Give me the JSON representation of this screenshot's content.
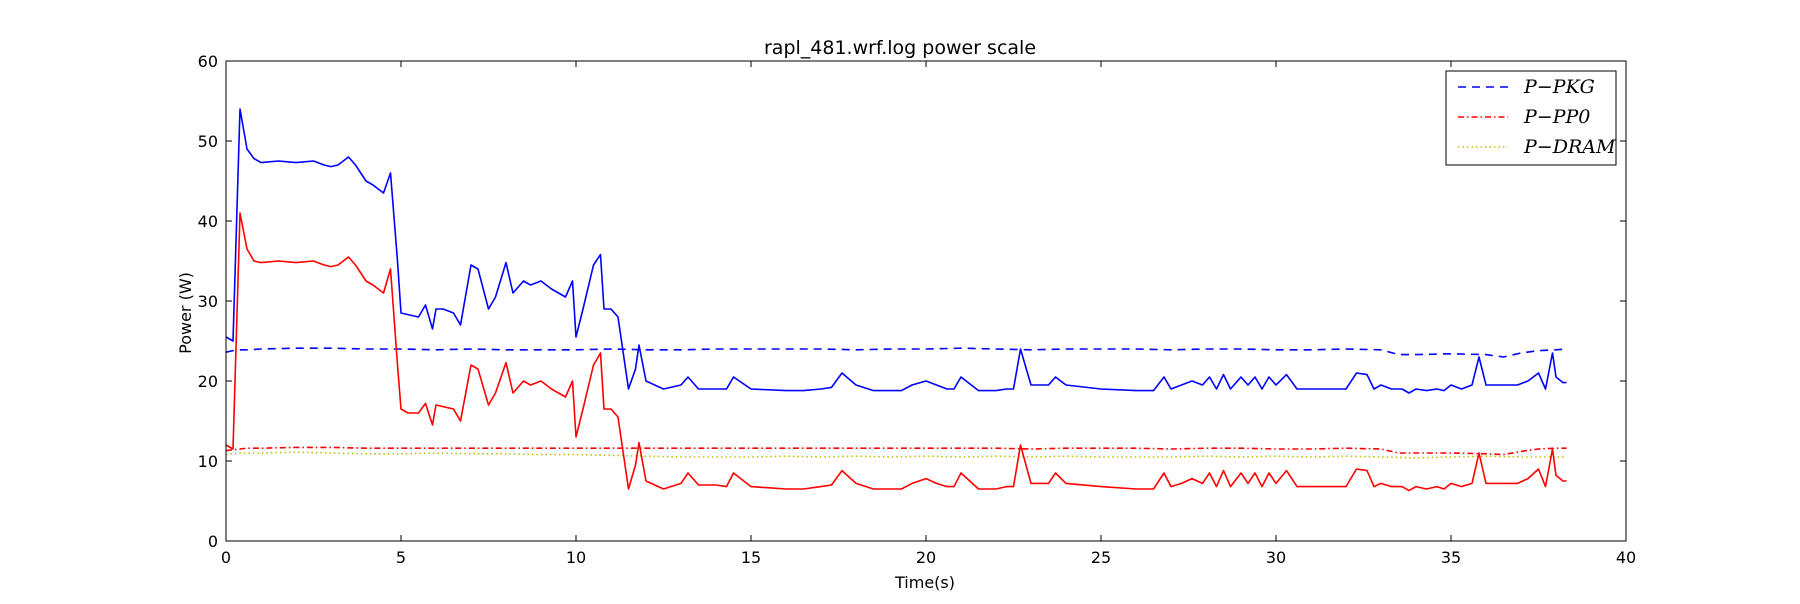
{
  "chart_data": {
    "type": "line",
    "title": "rapl_481.wrf.log power scale",
    "xlabel": "Time(s)",
    "ylabel": "Power (W)",
    "xlim": [
      0,
      40
    ],
    "ylim": [
      0,
      60
    ],
    "xticks": [
      0,
      5,
      10,
      15,
      20,
      25,
      30,
      35,
      40
    ],
    "yticks": [
      0,
      10,
      20,
      30,
      40,
      50,
      60
    ],
    "grid": false,
    "legend_position": "top-right",
    "series": [
      {
        "name": "P−PKG",
        "legend_glyphs": [
          "P",
          "−",
          "P",
          "K",
          "G"
        ],
        "color": "#0000ff",
        "dasharray": "8,6",
        "x": [
          0,
          0.2,
          0.4,
          0.6,
          1.0,
          2.0,
          3.0,
          4.0,
          5.0,
          6.0,
          7.0,
          8.0,
          9.0,
          10.0,
          11.0,
          12.0,
          13.0,
          14.0,
          15.0,
          16.0,
          17.0,
          18.0,
          19.0,
          20.0,
          21.0,
          22.0,
          23.0,
          24.0,
          25.0,
          26.0,
          27.0,
          28.0,
          29.0,
          30.0,
          31.0,
          32.0,
          33.0,
          33.5,
          34.0,
          35.0,
          36.0,
          36.5,
          37.0,
          37.5,
          38.0,
          38.3
        ],
        "y": [
          23.6,
          23.8,
          23.9,
          23.9,
          24.0,
          24.1,
          24.1,
          24.0,
          24.0,
          23.9,
          24.0,
          23.9,
          23.9,
          23.9,
          24.0,
          23.9,
          23.9,
          24.0,
          24.0,
          24.0,
          24.0,
          23.9,
          24.0,
          24.0,
          24.1,
          24.0,
          23.9,
          24.0,
          24.0,
          24.0,
          23.9,
          24.0,
          24.0,
          23.9,
          23.9,
          24.0,
          23.9,
          23.3,
          23.3,
          23.4,
          23.3,
          23.0,
          23.5,
          23.8,
          23.9,
          24.0
        ]
      },
      {
        "name": "P−PP0",
        "legend_glyphs": [
          "P",
          "−",
          "P",
          "P",
          "0"
        ],
        "color": "#ff0000",
        "dasharray": "6,3,1.5,3",
        "x": [
          0,
          0.2,
          0.4,
          0.6,
          1.0,
          2.0,
          3.0,
          4.0,
          5.0,
          6.0,
          7.0,
          8.0,
          9.0,
          10.0,
          11.0,
          12.0,
          13.0,
          14.0,
          15.0,
          16.0,
          17.0,
          18.0,
          19.0,
          20.0,
          21.0,
          22.0,
          23.0,
          24.0,
          25.0,
          26.0,
          27.0,
          28.0,
          29.0,
          30.0,
          31.0,
          32.0,
          33.0,
          33.5,
          34.0,
          35.0,
          36.0,
          36.5,
          37.0,
          37.5,
          38.0,
          38.3
        ],
        "y": [
          11.3,
          11.4,
          11.5,
          11.6,
          11.6,
          11.7,
          11.7,
          11.6,
          11.6,
          11.6,
          11.6,
          11.6,
          11.6,
          11.6,
          11.6,
          11.6,
          11.6,
          11.6,
          11.6,
          11.6,
          11.6,
          11.6,
          11.6,
          11.6,
          11.6,
          11.6,
          11.5,
          11.6,
          11.6,
          11.6,
          11.5,
          11.6,
          11.6,
          11.5,
          11.5,
          11.6,
          11.5,
          11.0,
          11.0,
          11.0,
          10.9,
          10.8,
          11.2,
          11.5,
          11.6,
          11.6
        ]
      },
      {
        "name": "P−DRAM",
        "legend_glyphs": [
          "P",
          "−",
          "D",
          "R",
          "A",
          "M"
        ],
        "color": "#bfbf00",
        "dasharray": "1.5,3",
        "x": [
          0,
          0.2,
          0.4,
          0.6,
          1.0,
          2.0,
          3.0,
          4.0,
          5.0,
          6.0,
          7.0,
          8.0,
          9.0,
          10.0,
          11.0,
          12.0,
          13.0,
          14.0,
          15.0,
          16.0,
          17.0,
          18.0,
          19.0,
          20.0,
          21.0,
          22.0,
          23.0,
          24.0,
          25.0,
          26.0,
          27.0,
          28.0,
          29.0,
          30.0,
          31.0,
          32.0,
          33.0,
          34.0,
          35.0,
          36.0,
          37.0,
          38.0,
          38.3
        ],
        "y": [
          10.8,
          10.9,
          11.0,
          11.0,
          11.0,
          11.1,
          11.0,
          10.9,
          10.9,
          11.0,
          10.9,
          10.9,
          10.8,
          10.8,
          10.7,
          10.6,
          10.5,
          10.5,
          10.5,
          10.6,
          10.5,
          10.6,
          10.5,
          10.6,
          10.5,
          10.6,
          10.5,
          10.6,
          10.5,
          10.5,
          10.5,
          10.6,
          10.5,
          10.6,
          10.5,
          10.6,
          10.5,
          10.4,
          10.5,
          10.6,
          10.5,
          10.5,
          10.5
        ]
      },
      {
        "name": "",
        "legend_glyphs": [],
        "color": "#0000ff",
        "dasharray": "",
        "x": [
          0,
          0.2,
          0.4,
          0.6,
          0.8,
          1.0,
          1.5,
          2.0,
          2.5,
          2.8,
          3.0,
          3.2,
          3.5,
          3.7,
          4.0,
          4.2,
          4.5,
          4.7,
          4.9,
          5.0,
          5.2,
          5.5,
          5.7,
          5.9,
          6.0,
          6.2,
          6.5,
          6.7,
          7.0,
          7.2,
          7.5,
          7.7,
          8.0,
          8.2,
          8.5,
          8.7,
          9.0,
          9.3,
          9.7,
          9.9,
          10.0,
          10.2,
          10.5,
          10.7,
          10.8,
          11.0,
          11.2,
          11.5,
          11.7,
          11.8,
          12.0,
          12.5,
          13.0,
          13.2,
          13.5,
          14.0,
          14.3,
          14.5,
          15.0,
          16.0,
          16.5,
          17.0,
          17.3,
          17.6,
          18.0,
          18.5,
          19.0,
          19.3,
          19.6,
          20.0,
          20.3,
          20.6,
          20.8,
          21.0,
          21.5,
          22.0,
          22.3,
          22.5,
          22.7,
          23.0,
          23.5,
          23.7,
          24.0,
          25.0,
          26.0,
          26.5,
          26.8,
          27.0,
          27.3,
          27.6,
          27.9,
          28.1,
          28.3,
          28.5,
          28.7,
          29.0,
          29.2,
          29.4,
          29.6,
          29.8,
          30.0,
          30.3,
          30.6,
          31.0,
          31.5,
          32.0,
          32.3,
          32.6,
          32.8,
          33.0,
          33.3,
          33.6,
          33.8,
          34.0,
          34.3,
          34.6,
          34.8,
          35.0,
          35.3,
          35.6,
          35.8,
          36.0,
          36.3,
          36.6,
          36.9,
          37.2,
          37.5,
          37.7,
          37.9,
          38.0,
          38.2,
          38.3
        ],
        "y": [
          25.5,
          25.0,
          54.0,
          49.0,
          47.8,
          47.3,
          47.5,
          47.3,
          47.5,
          47.0,
          46.8,
          47.0,
          48.0,
          47.0,
          45.0,
          44.5,
          43.5,
          46.0,
          35.0,
          28.5,
          28.3,
          28.0,
          29.5,
          26.5,
          29.0,
          29.0,
          28.5,
          27.0,
          34.5,
          34.0,
          29.0,
          30.5,
          34.8,
          31.0,
          32.5,
          32.0,
          32.5,
          31.5,
          30.5,
          32.5,
          25.5,
          29.0,
          34.5,
          35.8,
          29.0,
          29.0,
          28.0,
          19.0,
          21.5,
          24.5,
          20.0,
          19.0,
          19.5,
          20.5,
          19.0,
          19.0,
          19.0,
          20.5,
          19.0,
          18.8,
          18.8,
          19.0,
          19.2,
          21.0,
          19.5,
          18.8,
          18.8,
          18.8,
          19.5,
          20.0,
          19.5,
          19.0,
          19.0,
          20.5,
          18.8,
          18.8,
          19.0,
          19.0,
          24.0,
          19.5,
          19.5,
          20.5,
          19.5,
          19.0,
          18.8,
          18.8,
          20.5,
          19.0,
          19.5,
          20.0,
          19.5,
          20.5,
          19.0,
          20.8,
          19.0,
          20.5,
          19.5,
          20.5,
          19.0,
          20.5,
          19.5,
          20.8,
          19.0,
          19.0,
          19.0,
          19.0,
          21.0,
          20.8,
          19.0,
          19.5,
          19.0,
          19.0,
          18.5,
          19.0,
          18.8,
          19.0,
          18.8,
          19.5,
          19.0,
          19.5,
          23.0,
          19.5,
          19.5,
          19.5,
          19.5,
          20.0,
          21.0,
          19.0,
          23.5,
          20.5,
          19.8,
          19.8
        ]
      },
      {
        "name": "",
        "legend_glyphs": [],
        "color": "#ff0000",
        "dasharray": "",
        "x": [
          0,
          0.2,
          0.4,
          0.6,
          0.8,
          1.0,
          1.5,
          2.0,
          2.5,
          2.8,
          3.0,
          3.2,
          3.5,
          3.7,
          4.0,
          4.2,
          4.5,
          4.7,
          4.9,
          5.0,
          5.2,
          5.5,
          5.7,
          5.9,
          6.0,
          6.2,
          6.5,
          6.7,
          7.0,
          7.2,
          7.5,
          7.7,
          8.0,
          8.2,
          8.5,
          8.7,
          9.0,
          9.3,
          9.7,
          9.9,
          10.0,
          10.2,
          10.5,
          10.7,
          10.8,
          11.0,
          11.2,
          11.5,
          11.7,
          11.8,
          12.0,
          12.5,
          13.0,
          13.2,
          13.5,
          14.0,
          14.3,
          14.5,
          15.0,
          16.0,
          16.5,
          17.0,
          17.3,
          17.6,
          18.0,
          18.5,
          19.0,
          19.3,
          19.6,
          20.0,
          20.3,
          20.6,
          20.8,
          21.0,
          21.5,
          22.0,
          22.3,
          22.5,
          22.7,
          23.0,
          23.5,
          23.7,
          24.0,
          25.0,
          26.0,
          26.5,
          26.8,
          27.0,
          27.3,
          27.6,
          27.9,
          28.1,
          28.3,
          28.5,
          28.7,
          29.0,
          29.2,
          29.4,
          29.6,
          29.8,
          30.0,
          30.3,
          30.6,
          31.0,
          31.5,
          32.0,
          32.3,
          32.6,
          32.8,
          33.0,
          33.3,
          33.6,
          33.8,
          34.0,
          34.3,
          34.6,
          34.8,
          35.0,
          35.3,
          35.6,
          35.8,
          36.0,
          36.3,
          36.6,
          36.9,
          37.2,
          37.5,
          37.7,
          37.9,
          38.0,
          38.2,
          38.3
        ],
        "y": [
          12.0,
          11.5,
          41.0,
          36.5,
          35.0,
          34.8,
          35.0,
          34.8,
          35.0,
          34.5,
          34.3,
          34.5,
          35.5,
          34.5,
          32.5,
          32.0,
          31.0,
          34.0,
          22.0,
          16.5,
          16.0,
          16.0,
          17.2,
          14.5,
          17.0,
          16.8,
          16.5,
          15.0,
          22.0,
          21.5,
          17.0,
          18.5,
          22.3,
          18.5,
          20.0,
          19.5,
          20.0,
          19.0,
          18.0,
          20.0,
          13.0,
          16.5,
          22.0,
          23.5,
          16.5,
          16.5,
          15.5,
          6.5,
          9.5,
          12.3,
          7.5,
          6.5,
          7.2,
          8.5,
          7.0,
          7.0,
          6.8,
          8.5,
          6.8,
          6.5,
          6.5,
          6.8,
          7.0,
          8.8,
          7.2,
          6.5,
          6.5,
          6.5,
          7.2,
          7.8,
          7.2,
          6.8,
          6.8,
          8.5,
          6.5,
          6.5,
          6.8,
          6.8,
          12.0,
          7.2,
          7.2,
          8.5,
          7.2,
          6.8,
          6.5,
          6.5,
          8.5,
          6.8,
          7.2,
          7.8,
          7.2,
          8.5,
          6.8,
          8.8,
          6.8,
          8.5,
          7.2,
          8.5,
          6.8,
          8.5,
          7.2,
          8.8,
          6.8,
          6.8,
          6.8,
          6.8,
          9.0,
          8.8,
          6.8,
          7.2,
          6.8,
          6.8,
          6.3,
          6.8,
          6.5,
          6.8,
          6.5,
          7.2,
          6.8,
          7.2,
          11.0,
          7.2,
          7.2,
          7.2,
          7.2,
          7.8,
          9.0,
          6.8,
          11.5,
          8.2,
          7.5,
          7.5
        ]
      }
    ]
  }
}
